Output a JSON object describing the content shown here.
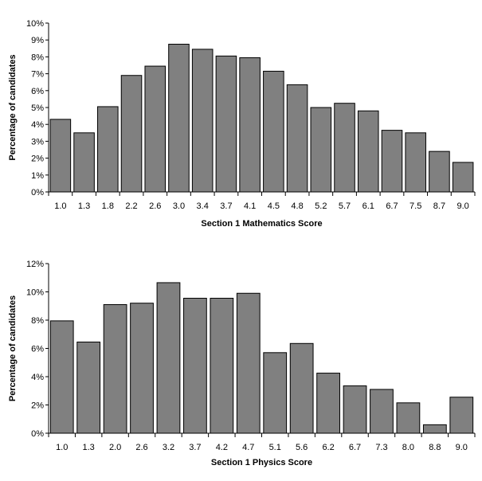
{
  "chart_data": [
    {
      "type": "bar",
      "title": "",
      "xlabel": "Section 1 Mathematics Score",
      "ylabel": "Percentage of candidates",
      "categories": [
        "1.0",
        "1.3",
        "1.8",
        "2.2",
        "2.6",
        "3.0",
        "3.4",
        "3.7",
        "4.1",
        "4.5",
        "4.8",
        "5.2",
        "5.7",
        "6.1",
        "6.7",
        "7.5",
        "8.7",
        "9.0"
      ],
      "values": [
        4.3,
        3.5,
        5.05,
        6.9,
        7.45,
        8.75,
        8.45,
        8.05,
        7.95,
        7.15,
        6.35,
        5.0,
        5.25,
        4.8,
        3.65,
        3.5,
        2.4,
        1.75
      ],
      "ylim": [
        0,
        10
      ],
      "yticks": [
        "0%",
        "1%",
        "2%",
        "3%",
        "4%",
        "5%",
        "6%",
        "7%",
        "8%",
        "9%",
        "10%"
      ],
      "bar_color": "#808080",
      "grid": false,
      "legend": "none"
    },
    {
      "type": "bar",
      "title": "",
      "xlabel": "Section 1 Physics Score",
      "ylabel": "Percentage of candidates",
      "categories": [
        "1.0",
        "1.3",
        "2.0",
        "2.6",
        "3.2",
        "3.7",
        "4.2",
        "4.7",
        "5.1",
        "5.6",
        "6.2",
        "6.7",
        "7.3",
        "8.0",
        "8.8",
        "9.0"
      ],
      "values": [
        7.95,
        6.45,
        9.1,
        9.2,
        10.65,
        9.55,
        9.55,
        9.9,
        5.7,
        6.35,
        4.25,
        3.35,
        3.1,
        2.15,
        0.6,
        2.55
      ],
      "ylim": [
        0,
        12
      ],
      "yticks": [
        "0%",
        "2%",
        "4%",
        "6%",
        "8%",
        "10%",
        "12%"
      ],
      "bar_color": "#808080",
      "grid": false,
      "legend": "none"
    }
  ]
}
